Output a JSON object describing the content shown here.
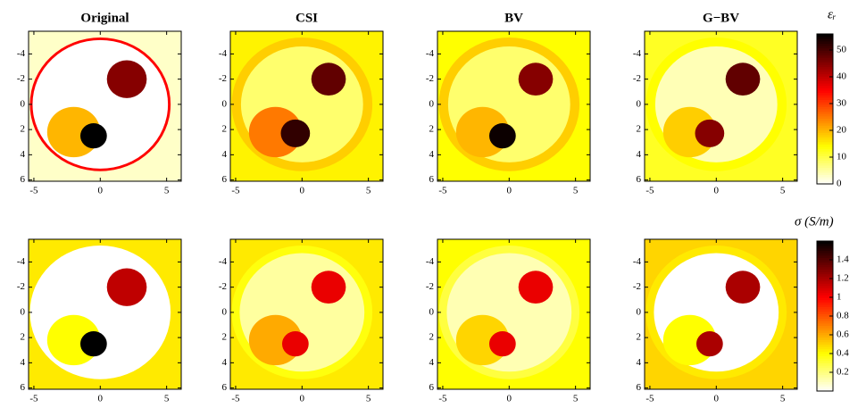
{
  "chart_data": [
    {
      "type": "heatmap",
      "title": "Original",
      "colormap": "hot_r",
      "xlim": [
        -5.4,
        6.1
      ],
      "ylim": [
        -5.8,
        6.1
      ],
      "xticks": [
        -5,
        0,
        5
      ],
      "yticks": [
        -4,
        -2,
        0,
        2,
        4,
        6
      ],
      "background": 3,
      "regions": [
        {
          "x": 0,
          "y": 0,
          "r": 5.3,
          "value": 35
        },
        {
          "x": 0,
          "y": 0,
          "r": 5.1,
          "value": 0
        },
        {
          "x": -2,
          "y": 2.2,
          "r": 2,
          "value": 20
        },
        {
          "x": 2,
          "y": -2,
          "r": 1.5,
          "value": 45
        },
        {
          "x": -0.5,
          "y": 2.5,
          "r": 1,
          "value": 56
        }
      ]
    },
    {
      "type": "heatmap",
      "title": "CSI",
      "colormap": "hot_r",
      "xlim": [
        -5.4,
        6.1
      ],
      "ylim": [
        -5.8,
        6.1
      ],
      "xticks": [
        -5,
        0,
        5
      ],
      "yticks": [
        -4,
        -2,
        0,
        2,
        4,
        6
      ],
      "background": 15,
      "regions": [
        {
          "x": 0,
          "y": 0,
          "r": 5.3,
          "value": 18
        },
        {
          "x": 0,
          "y": 0,
          "r": 4.6,
          "value": 8
        },
        {
          "x": -2,
          "y": 2.2,
          "r": 2,
          "value": 25
        },
        {
          "x": 2,
          "y": -2,
          "r": 1.3,
          "value": 48
        },
        {
          "x": -0.5,
          "y": 2.3,
          "r": 1.1,
          "value": 52
        }
      ]
    },
    {
      "type": "heatmap",
      "title": "BV",
      "colormap": "hot_r",
      "xlim": [
        -5.4,
        6.1
      ],
      "ylim": [
        -5.8,
        6.1
      ],
      "xticks": [
        -5,
        0,
        5
      ],
      "yticks": [
        -4,
        -2,
        0,
        2,
        4,
        6
      ],
      "background": 14,
      "regions": [
        {
          "x": 0,
          "y": 0,
          "r": 5.3,
          "value": 18
        },
        {
          "x": 0,
          "y": 0,
          "r": 4.6,
          "value": 8
        },
        {
          "x": -2,
          "y": 2.2,
          "r": 2,
          "value": 20
        },
        {
          "x": 2,
          "y": -2,
          "r": 1.3,
          "value": 45
        },
        {
          "x": -0.5,
          "y": 2.5,
          "r": 1,
          "value": 55
        }
      ]
    },
    {
      "type": "heatmap",
      "title": "G−BV",
      "colormap": "hot_r",
      "xlim": [
        -5.4,
        6.1
      ],
      "ylim": [
        -5.8,
        6.1
      ],
      "xticks": [
        -5,
        0,
        5
      ],
      "yticks": [
        -4,
        -2,
        0,
        2,
        4,
        6
      ],
      "background": 12,
      "regions": [
        {
          "x": 0,
          "y": 0,
          "r": 5.3,
          "value": 14
        },
        {
          "x": 0,
          "y": 0,
          "r": 4.6,
          "value": 4
        },
        {
          "x": -2,
          "y": 2.2,
          "r": 2,
          "value": 18
        },
        {
          "x": 2,
          "y": -2,
          "r": 1.3,
          "value": 48
        },
        {
          "x": -0.5,
          "y": 2.3,
          "r": 1.1,
          "value": 45
        }
      ]
    },
    {
      "type": "heatmap",
      "colormap": "hot_r",
      "xlim": [
        -5.4,
        6.1
      ],
      "ylim": [
        -5.8,
        6.1
      ],
      "xticks": [
        -5,
        0,
        5
      ],
      "yticks": [
        -4,
        -2,
        0,
        2,
        4,
        6
      ],
      "background": 0.45,
      "regions": [
        {
          "x": 0,
          "y": 0,
          "r": 5.3,
          "value": 0
        },
        {
          "x": -2,
          "y": 2.2,
          "r": 2,
          "value": 0.4
        },
        {
          "x": 2,
          "y": -2,
          "r": 1.5,
          "value": 1.15
        },
        {
          "x": -0.5,
          "y": 2.5,
          "r": 1,
          "value": 1.6
        }
      ]
    },
    {
      "type": "heatmap",
      "colormap": "hot_r",
      "xlim": [
        -5.4,
        6.1
      ],
      "ylim": [
        -5.8,
        6.1
      ],
      "xticks": [
        -5,
        0,
        5
      ],
      "yticks": [
        -4,
        -2,
        0,
        2,
        4,
        6
      ],
      "background": 0.45,
      "regions": [
        {
          "x": 0,
          "y": 0,
          "r": 5.3,
          "value": 0.38
        },
        {
          "x": 0,
          "y": 0,
          "r": 4.7,
          "value": 0.15
        },
        {
          "x": -2,
          "y": 2.2,
          "r": 2,
          "value": 0.6
        },
        {
          "x": 2,
          "y": -2,
          "r": 1.3,
          "value": 1.05
        },
        {
          "x": -0.5,
          "y": 2.5,
          "r": 1,
          "value": 1.05
        }
      ]
    },
    {
      "type": "heatmap",
      "colormap": "hot_r",
      "xlim": [
        -5.4,
        6.1
      ],
      "ylim": [
        -5.8,
        6.1
      ],
      "xticks": [
        -5,
        0,
        5
      ],
      "yticks": [
        -4,
        -2,
        0,
        2,
        4,
        6
      ],
      "background": 0.4,
      "regions": [
        {
          "x": 0,
          "y": 0,
          "r": 5.3,
          "value": 0.3
        },
        {
          "x": 0,
          "y": 0,
          "r": 4.7,
          "value": 0.12
        },
        {
          "x": -2,
          "y": 2.2,
          "r": 2,
          "value": 0.5
        },
        {
          "x": 2,
          "y": -2,
          "r": 1.3,
          "value": 1.05
        },
        {
          "x": -0.5,
          "y": 2.5,
          "r": 1,
          "value": 1.05
        }
      ]
    },
    {
      "type": "heatmap",
      "colormap": "hot_r",
      "xlim": [
        -5.4,
        6.1
      ],
      "ylim": [
        -5.8,
        6.1
      ],
      "xticks": [
        -5,
        0,
        5
      ],
      "yticks": [
        -4,
        -2,
        0,
        2,
        4,
        6
      ],
      "background": 0.5,
      "regions": [
        {
          "x": 0,
          "y": 0,
          "r": 5.3,
          "value": 0.45
        },
        {
          "x": 0,
          "y": 0,
          "r": 4.7,
          "value": 0
        },
        {
          "x": -2,
          "y": 2.2,
          "r": 2,
          "value": 0.4
        },
        {
          "x": 2,
          "y": -2,
          "r": 1.3,
          "value": 1.2
        },
        {
          "x": -0.5,
          "y": 2.5,
          "r": 1,
          "value": 1.2
        }
      ]
    },
    {
      "type": "colorbar",
      "label": "εᵣ",
      "colormap": "hot_r",
      "ylim": [
        0,
        56
      ],
      "yticks": [
        0,
        10,
        20,
        30,
        40,
        50
      ]
    },
    {
      "type": "colorbar",
      "label": "σ (S/m)",
      "colormap": "hot_r",
      "ylim": [
        0,
        1.6
      ],
      "yticks": [
        0.2,
        0.4,
        0.6,
        0.8,
        1,
        1.2,
        1.4
      ]
    }
  ]
}
